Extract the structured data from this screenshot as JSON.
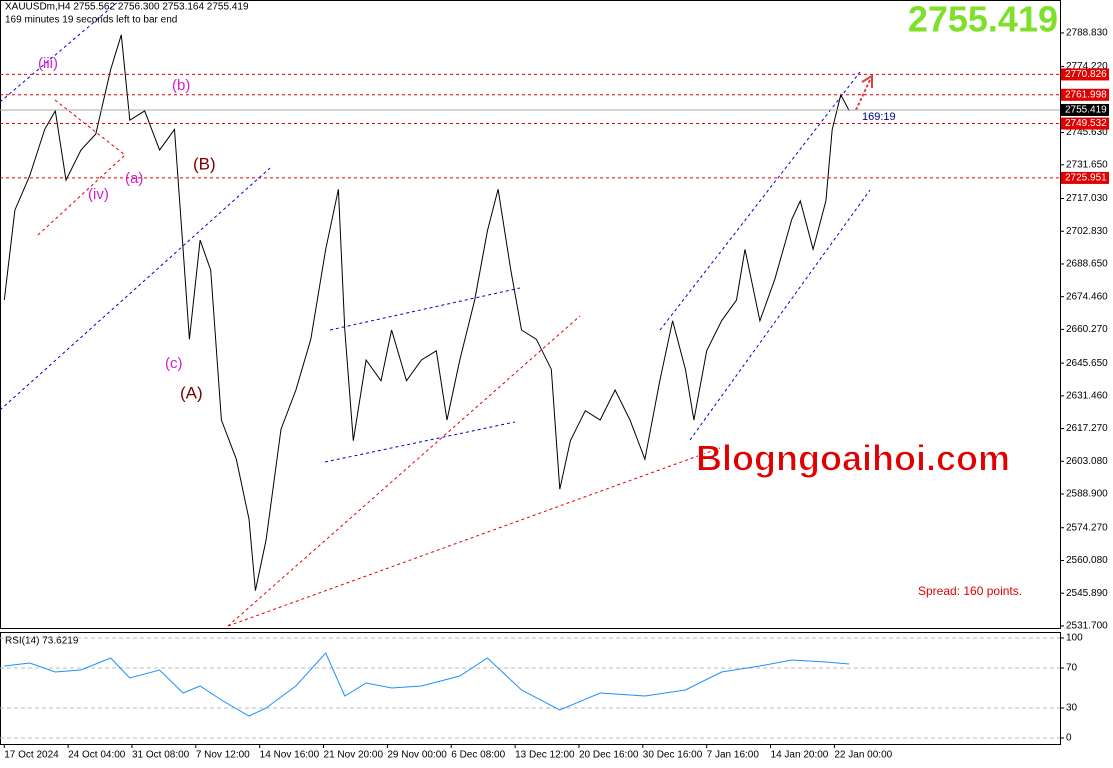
{
  "chart_data": [
    {
      "type": "line",
      "title": "XAUUSDm,H4  2755.562 2756.300 2753.164 2755.419",
      "subtitle": "169 minutes 19 seconds left to bar end",
      "price_display": "2755.419",
      "countdown": "169:19",
      "spread": "Spread: 160 points.",
      "watermark": "Blogngoaihoi.com",
      "annotations": [
        "(iii)",
        "(b)",
        "(a)",
        "(iv)",
        "(B)",
        "(c)",
        "(A)"
      ],
      "x": [
        0,
        5,
        12,
        19,
        24,
        29,
        36,
        43,
        50,
        55,
        59,
        66,
        73,
        80,
        84,
        87,
        92,
        97,
        102,
        109,
        115,
        118,
        123,
        130,
        137,
        144,
        151,
        157,
        160,
        164,
        170,
        177,
        182,
        189,
        196,
        203,
        208,
        214,
        221,
        227,
        232,
        238,
        243,
        250,
        257,
        261,
        266,
        273,
        280,
        287,
        294,
        301,
        308,
        314,
        320,
        324,
        330,
        337,
        344,
        348,
        355,
        362,
        370,
        374,
        380,
        386,
        389,
        393,
        397
      ],
      "series": [
        {
          "color": "#000000",
          "values": [
            2673,
            2712,
            2727,
            2747,
            2755,
            2725,
            2738,
            2745,
            2773,
            2788,
            2751,
            2755,
            2738,
            2747,
            2695,
            2656,
            2699,
            2686,
            2621,
            2604,
            2578,
            2547,
            2569,
            2617,
            2634,
            2656,
            2695,
            2721,
            2660,
            2612,
            2647,
            2638,
            2660,
            2638,
            2647,
            2651,
            2621,
            2647,
            2673,
            2703,
            2721,
            2686,
            2660,
            2656,
            2643,
            2591,
            2612,
            2625,
            2621,
            2634,
            2621,
            2604,
            2638,
            2664,
            2643,
            2621,
            2651,
            2664,
            2673,
            2695,
            2664,
            2682,
            2708,
            2716,
            2695,
            2716,
            2747,
            2762,
            2755
          ]
        }
      ],
      "current_price": 2755.419,
      "levels": [
        2770.826,
        2761.998,
        2749.532,
        2725.951
      ],
      "level_color": "#e00000",
      "xlim": [
        -2,
        496
      ],
      "xticks": [
        {
          "value": 0,
          "label": "17 Oct 2024"
        },
        {
          "value": 30,
          "label": "24 Oct 04:00"
        },
        {
          "value": 60,
          "label": "31 Oct 08:00"
        },
        {
          "value": 90,
          "label": "7 Nov 12:00"
        },
        {
          "value": 120,
          "label": "14 Nov 16:00"
        },
        {
          "value": 150,
          "label": "21 Nov 20:00"
        },
        {
          "value": 180,
          "label": "29 Nov 00:00"
        },
        {
          "value": 210,
          "label": "6 Dec 08:00"
        },
        {
          "value": 240,
          "label": "13 Dec 12:00"
        },
        {
          "value": 270,
          "label": "20 Dec 16:00"
        },
        {
          "value": 300,
          "label": "30 Dec 16:00"
        },
        {
          "value": 330,
          "label": "7 Jan 16:00"
        },
        {
          "value": 360,
          "label": "14 Jan 20:00"
        },
        {
          "value": 390,
          "label": "22 Jan 00:00"
        }
      ],
      "ylim": [
        2530.8,
        2803.1
      ],
      "yticks": [
        {
          "value": 2788.83,
          "label": "2788.830"
        },
        {
          "value": 2774.22,
          "label": "2774.220"
        },
        {
          "value": 2745.63,
          "label": "2745.630"
        },
        {
          "value": 2731.65,
          "label": "2731.650"
        },
        {
          "value": 2717.03,
          "label": "2717.030"
        },
        {
          "value": 2702.83,
          "label": "2702.830"
        },
        {
          "value": 2688.65,
          "label": "2688.650"
        },
        {
          "value": 2674.46,
          "label": "2674.460"
        },
        {
          "value": 2660.27,
          "label": "2660.270"
        },
        {
          "value": 2645.65,
          "label": "2645.650"
        },
        {
          "value": 2631.46,
          "label": "2631.460"
        },
        {
          "value": 2617.27,
          "label": "2617.270"
        },
        {
          "value": 2603.08,
          "label": "2603.080"
        },
        {
          "value": 2588.9,
          "label": "2588.900"
        },
        {
          "value": 2574.27,
          "label": "2574.270"
        },
        {
          "value": 2560.08,
          "label": "2560.080"
        },
        {
          "value": 2545.89,
          "label": "2545.890"
        },
        {
          "value": 2531.7,
          "label": "2531.700"
        }
      ]
    },
    {
      "type": "line",
      "title": "RSI(14) 73.6219",
      "x": [
        0,
        12,
        24,
        36,
        50,
        59,
        73,
        84,
        92,
        102,
        115,
        123,
        137,
        151,
        160,
        170,
        182,
        196,
        214,
        227,
        243,
        261,
        280,
        301,
        320,
        337,
        355,
        370,
        386,
        397
      ],
      "series": [
        {
          "color": "#1e90ff",
          "values": [
            72,
            75,
            66,
            68,
            80,
            60,
            68,
            45,
            52,
            38,
            22,
            30,
            52,
            85,
            42,
            55,
            50,
            52,
            62,
            80,
            48,
            28,
            45,
            42,
            48,
            66,
            72,
            78,
            76,
            74
          ]
        }
      ],
      "xlim": [
        -2,
        496
      ],
      "ylim": [
        -6,
        106
      ],
      "yticks": [
        100,
        70,
        30,
        0
      ],
      "grid": true
    }
  ]
}
